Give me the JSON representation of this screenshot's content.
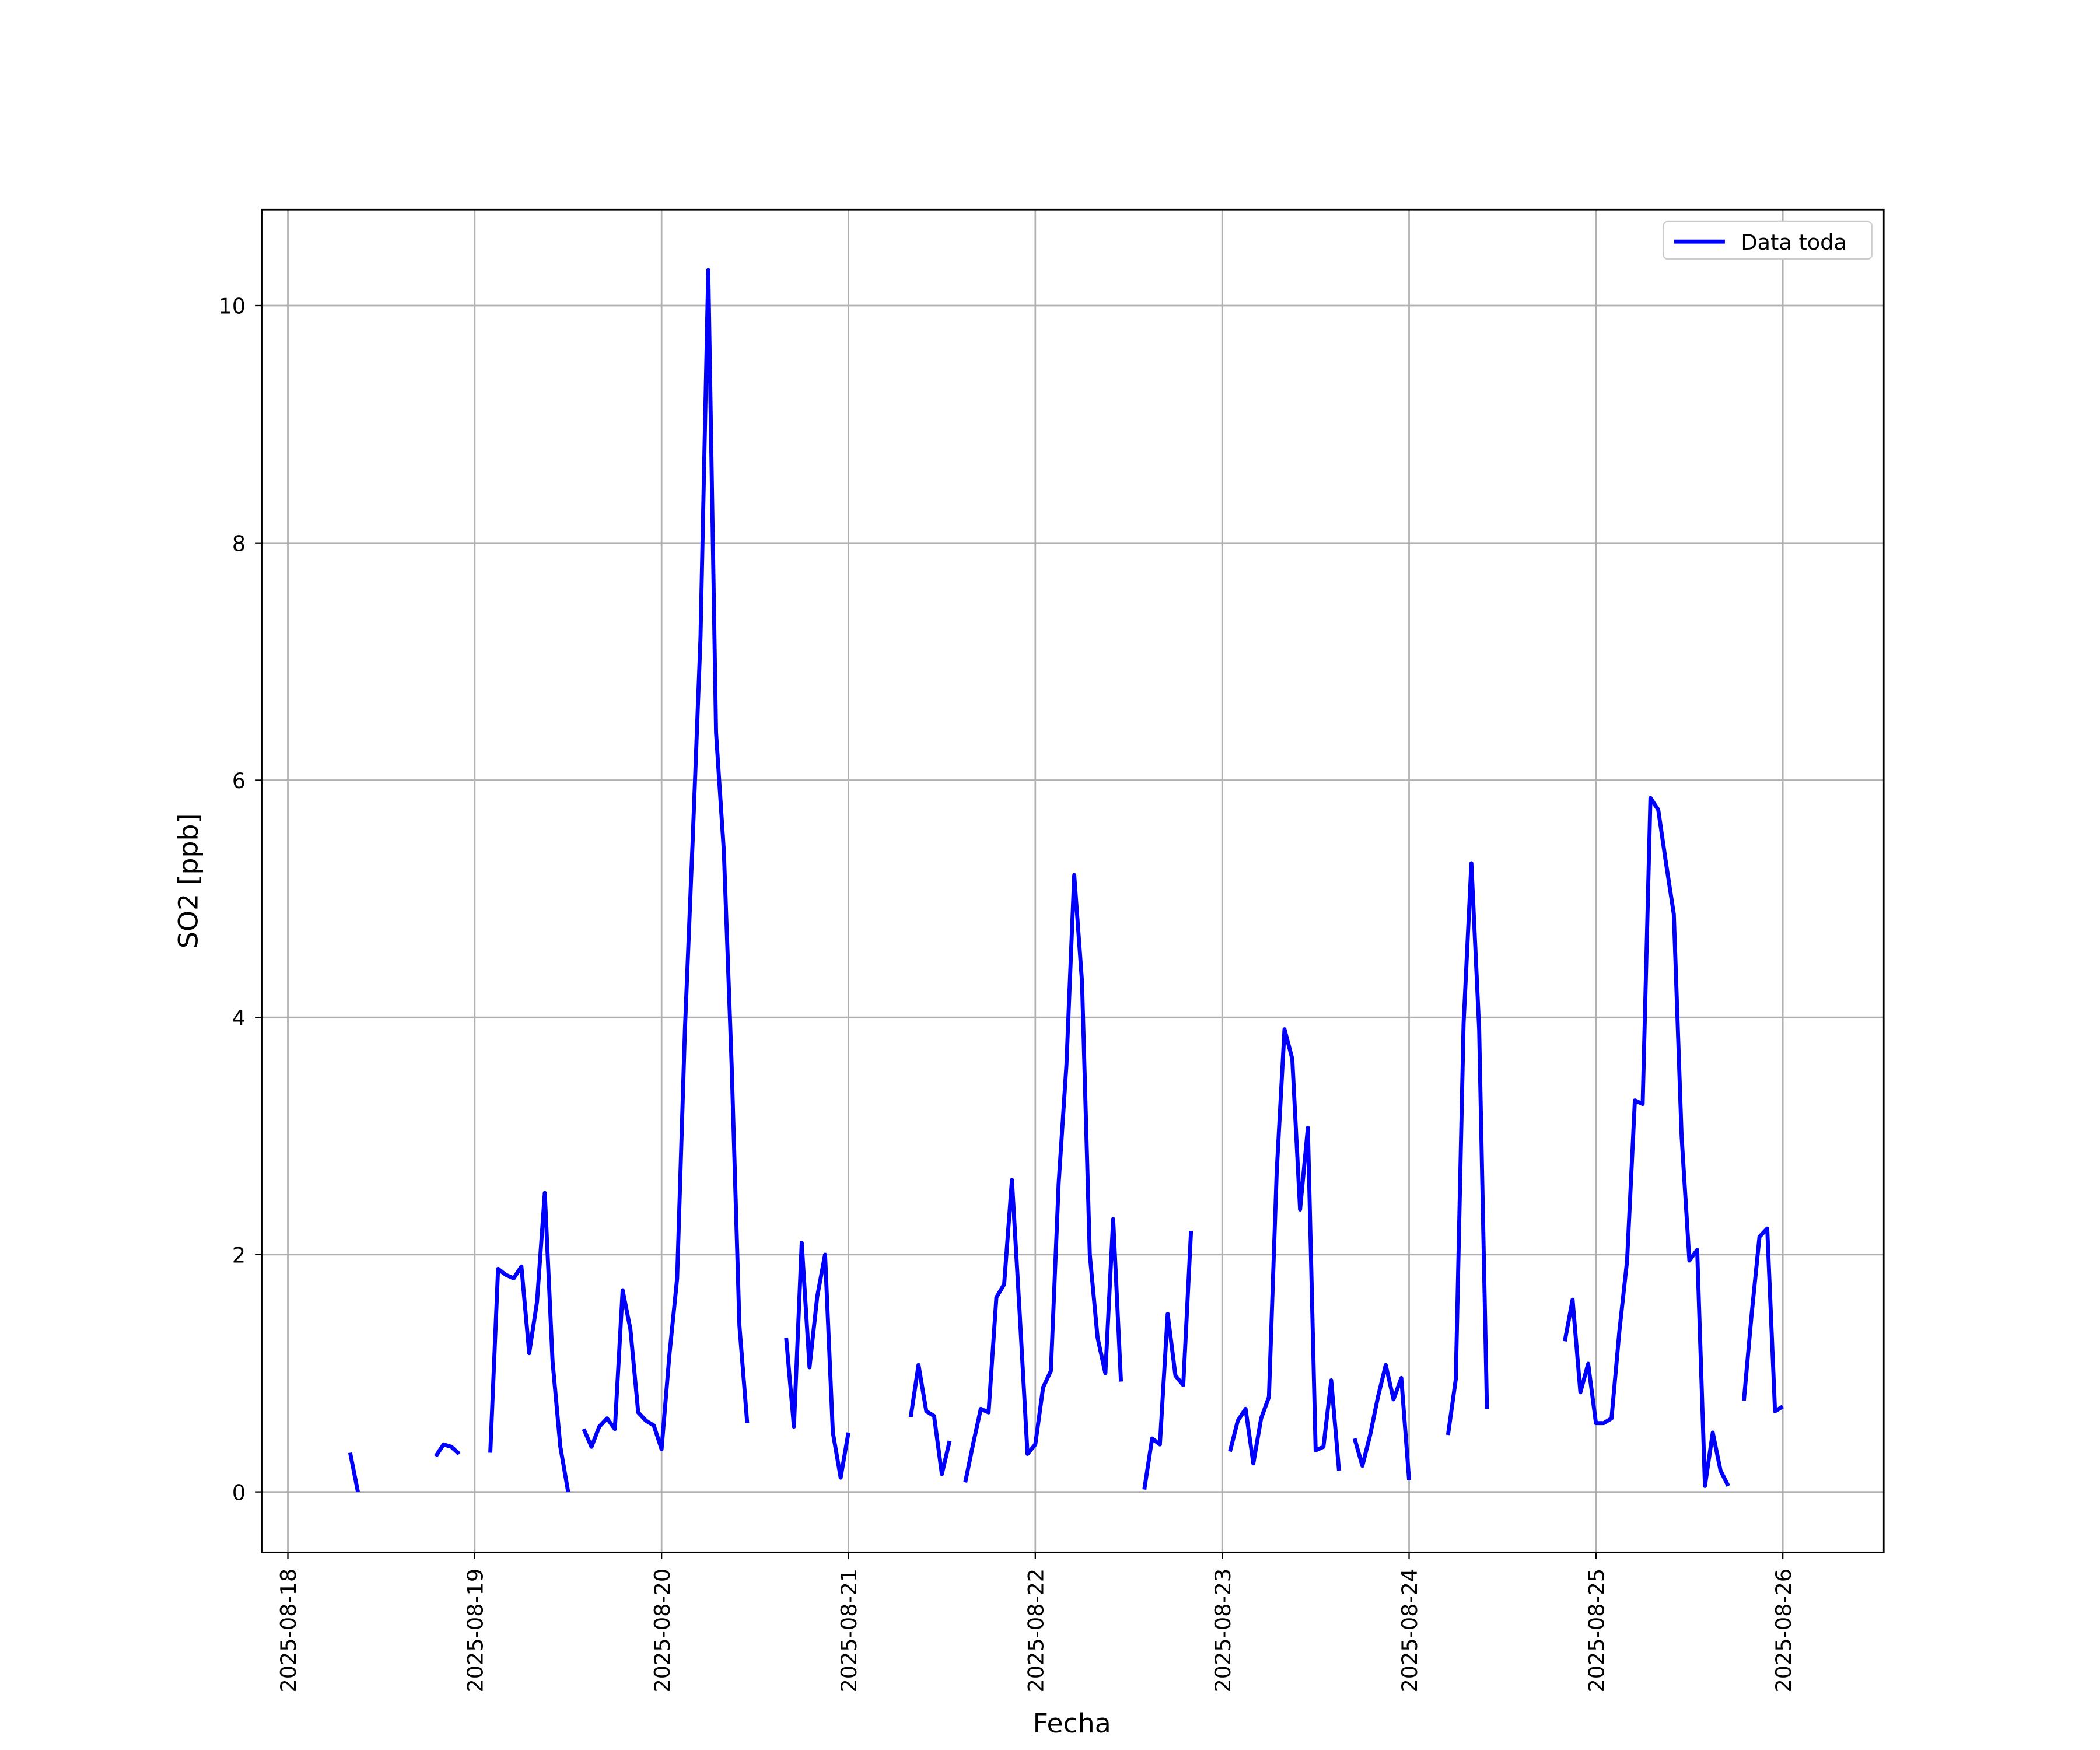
{
  "chart_data": {
    "type": "line",
    "xlabel": "Fecha",
    "ylabel": "SO2 [ppb]",
    "x": [
      "2025-08-18 08:00",
      "2025-08-18 09:00",
      "2025-08-18 10:00",
      "2025-08-18 19:00",
      "2025-08-18 20:00",
      "2025-08-18 21:00",
      "2025-08-18 22:00",
      "2025-08-18 23:00",
      "2025-08-19 02:00",
      "2025-08-19 03:00",
      "2025-08-19 04:00",
      "2025-08-19 05:00",
      "2025-08-19 06:00",
      "2025-08-19 07:00",
      "2025-08-19 08:00",
      "2025-08-19 09:00",
      "2025-08-19 10:00",
      "2025-08-19 11:00",
      "2025-08-19 12:00",
      "2025-08-19 13:00",
      "2025-08-19 14:00",
      "2025-08-19 15:00",
      "2025-08-19 16:00",
      "2025-08-19 17:00",
      "2025-08-19 18:00",
      "2025-08-19 19:00",
      "2025-08-19 20:00",
      "2025-08-19 21:00",
      "2025-08-19 22:00",
      "2025-08-19 23:00",
      "2025-08-20 00:00",
      "2025-08-20 01:00",
      "2025-08-20 02:00",
      "2025-08-20 03:00",
      "2025-08-20 04:00",
      "2025-08-20 05:00",
      "2025-08-20 06:00",
      "2025-08-20 07:00",
      "2025-08-20 08:00",
      "2025-08-20 09:00",
      "2025-08-20 10:00",
      "2025-08-20 11:00",
      "2025-08-20 12:00",
      "2025-08-20 16:00",
      "2025-08-20 17:00",
      "2025-08-20 18:00",
      "2025-08-20 19:00",
      "2025-08-20 20:00",
      "2025-08-20 21:00",
      "2025-08-20 22:00",
      "2025-08-20 23:00",
      "2025-08-21 00:00",
      "2025-08-21 01:00",
      "2025-08-21 08:00",
      "2025-08-21 09:00",
      "2025-08-21 10:00",
      "2025-08-21 11:00",
      "2025-08-21 12:00",
      "2025-08-21 13:00",
      "2025-08-21 14:00",
      "2025-08-21 15:00",
      "2025-08-21 16:00",
      "2025-08-21 17:00",
      "2025-08-21 18:00",
      "2025-08-21 19:00",
      "2025-08-21 20:00",
      "2025-08-21 21:00",
      "2025-08-21 22:00",
      "2025-08-21 23:00",
      "2025-08-22 00:00",
      "2025-08-22 01:00",
      "2025-08-22 02:00",
      "2025-08-22 03:00",
      "2025-08-22 04:00",
      "2025-08-22 05:00",
      "2025-08-22 06:00",
      "2025-08-22 07:00",
      "2025-08-22 08:00",
      "2025-08-22 09:00",
      "2025-08-22 10:00",
      "2025-08-22 11:00",
      "2025-08-22 12:00",
      "2025-08-22 14:00",
      "2025-08-22 15:00",
      "2025-08-22 16:00",
      "2025-08-22 17:00",
      "2025-08-22 18:00",
      "2025-08-22 19:00",
      "2025-08-22 20:00",
      "2025-08-22 21:00",
      "2025-08-23 01:00",
      "2025-08-23 02:00",
      "2025-08-23 03:00",
      "2025-08-23 04:00",
      "2025-08-23 05:00",
      "2025-08-23 06:00",
      "2025-08-23 07:00",
      "2025-08-23 08:00",
      "2025-08-23 09:00",
      "2025-08-23 10:00",
      "2025-08-23 11:00",
      "2025-08-23 12:00",
      "2025-08-23 13:00",
      "2025-08-23 14:00",
      "2025-08-23 15:00",
      "2025-08-23 16:00",
      "2025-08-23 17:00",
      "2025-08-23 18:00",
      "2025-08-23 19:00",
      "2025-08-23 20:00",
      "2025-08-23 21:00",
      "2025-08-23 22:00",
      "2025-08-23 23:00",
      "2025-08-24 00:00",
      "2025-08-24 01:00",
      "2025-08-24 05:00",
      "2025-08-24 06:00",
      "2025-08-24 07:00",
      "2025-08-24 08:00",
      "2025-08-24 09:00",
      "2025-08-24 10:00",
      "2025-08-24 11:00",
      "2025-08-24 20:00",
      "2025-08-24 21:00",
      "2025-08-24 22:00",
      "2025-08-24 23:00",
      "2025-08-25 00:00",
      "2025-08-25 01:00",
      "2025-08-25 02:00",
      "2025-08-25 03:00",
      "2025-08-25 04:00",
      "2025-08-25 05:00",
      "2025-08-25 06:00",
      "2025-08-25 07:00",
      "2025-08-25 08:00",
      "2025-08-25 09:00",
      "2025-08-25 10:00",
      "2025-08-25 11:00",
      "2025-08-25 12:00",
      "2025-08-25 13:00",
      "2025-08-25 14:00",
      "2025-08-25 15:00",
      "2025-08-25 16:00",
      "2025-08-25 17:00",
      "2025-08-25 18:00",
      "2025-08-25 19:00",
      "2025-08-25 20:00",
      "2025-08-25 21:00",
      "2025-08-25 22:00",
      "2025-08-25 23:00",
      "2025-08-26 00:00"
    ],
    "series": [
      {
        "name": "Data toda",
        "color": "#0000ff",
        "values": [
          0.33,
          0,
          null,
          0.3,
          0.4,
          0.38,
          0.32,
          null,
          0.33,
          1.88,
          1.83,
          1.8,
          1.9,
          1.17,
          1.6,
          2.52,
          1.1,
          0.38,
          0,
          null,
          0.53,
          0.38,
          0.55,
          0.62,
          0.53,
          1.7,
          1.37,
          0.67,
          0.6,
          0.56,
          0.36,
          1.15,
          1.8,
          3.9,
          5.5,
          7.2,
          10.3,
          6.4,
          5.4,
          3.6,
          1.4,
          0.58,
          null,
          1.3,
          0.55,
          2.1,
          1.05,
          1.65,
          2.0,
          0.5,
          0.12,
          0.5,
          null,
          0.63,
          1.07,
          0.68,
          0.64,
          0.15,
          0.43,
          null,
          0.08,
          0.4,
          0.7,
          0.67,
          1.64,
          1.75,
          2.63,
          1.5,
          0.32,
          0.4,
          0.88,
          1.02,
          2.6,
          3.6,
          5.2,
          4.3,
          2.0,
          1.3,
          1.0,
          2.3,
          0.93,
          null,
          0.02,
          0.45,
          0.4,
          1.5,
          0.98,
          0.9,
          2.2,
          null,
          0.34,
          0.6,
          0.7,
          0.24,
          0.62,
          0.8,
          2.7,
          3.9,
          3.65,
          2.38,
          3.07,
          0.35,
          0.38,
          0.94,
          0.18,
          null,
          0.45,
          0.22,
          0.48,
          0.8,
          1.07,
          0.78,
          0.96,
          0.1,
          null,
          0.48,
          0.95,
          3.95,
          5.3,
          3.9,
          0.7,
          null,
          1.27,
          1.62,
          0.84,
          1.08,
          0.58,
          0.58,
          0.62,
          1.35,
          1.95,
          3.3,
          3.27,
          5.85,
          5.75,
          5.3,
          4.87,
          3.0,
          1.95,
          2.04,
          0.05,
          0.5,
          0.18,
          0.05,
          null,
          0.77,
          1.5,
          2.15,
          2.22,
          0.68,
          0.72
        ]
      }
    ],
    "xlim": [
      "2025-08-17 20:38",
      "2025-08-26 12:58"
    ],
    "xticks": [
      "2025-08-18",
      "2025-08-19",
      "2025-08-20",
      "2025-08-21",
      "2025-08-22",
      "2025-08-23",
      "2025-08-24",
      "2025-08-25",
      "2025-08-26"
    ],
    "ylim": [
      -0.51,
      10.81
    ],
    "yticks": [
      0,
      2,
      4,
      6,
      8,
      10
    ],
    "grid": true,
    "legend": "upper right"
  }
}
